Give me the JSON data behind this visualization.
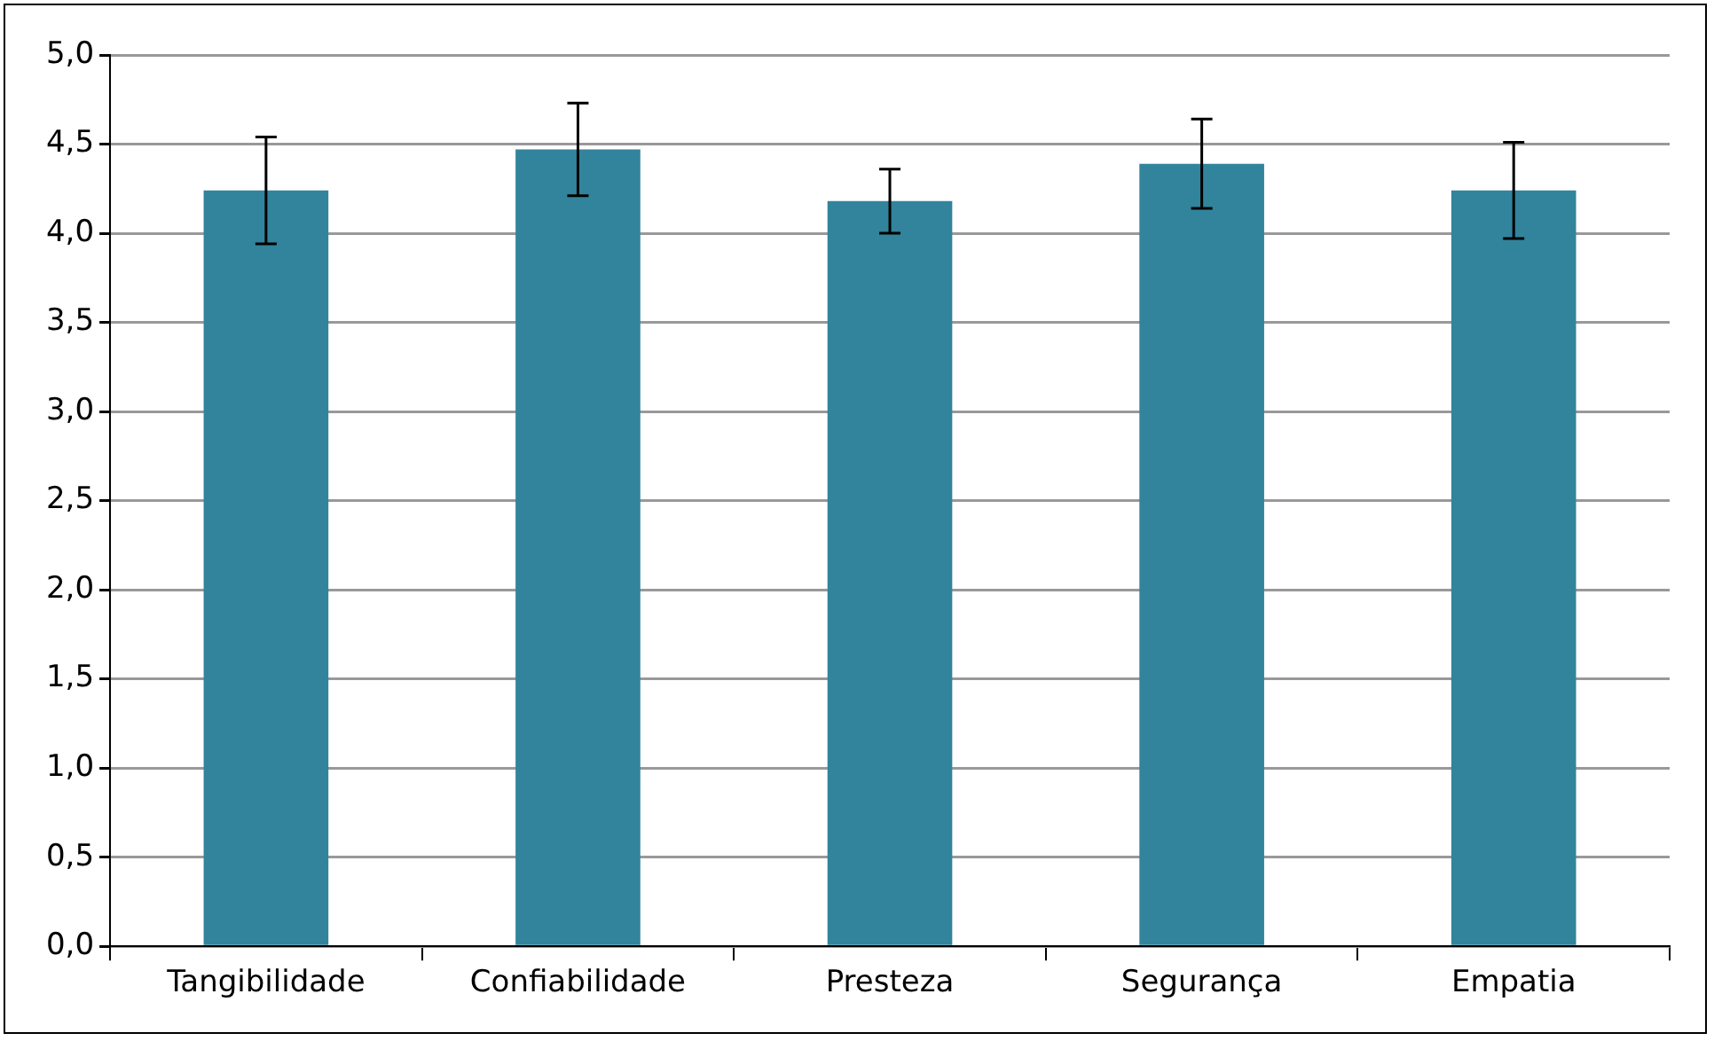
{
  "chart_data": {
    "type": "bar",
    "categories": [
      "Tangibilidade",
      "Confiabilidade",
      "Presteza",
      "Segurança",
      "Empatia"
    ],
    "values": [
      4.24,
      4.47,
      4.18,
      4.39,
      4.24
    ],
    "errors": [
      0.3,
      0.26,
      0.18,
      0.25,
      0.27
    ],
    "color": "#31849b",
    "ylim": [
      0,
      5
    ],
    "yticks": [
      {
        "value": 0,
        "label": "0,0"
      },
      {
        "value": 0.5,
        "label": "0,5"
      },
      {
        "value": 1,
        "label": "1,0"
      },
      {
        "value": 1.5,
        "label": "1,5"
      },
      {
        "value": 2,
        "label": "2,0"
      },
      {
        "value": 2.5,
        "label": "2,5"
      },
      {
        "value": 3,
        "label": "3,0"
      },
      {
        "value": 3.5,
        "label": "3,5"
      },
      {
        "value": 4,
        "label": "4,0"
      },
      {
        "value": 4.5,
        "label": "4,5"
      },
      {
        "value": 5,
        "label": "5,0"
      }
    ],
    "grid": "y"
  }
}
